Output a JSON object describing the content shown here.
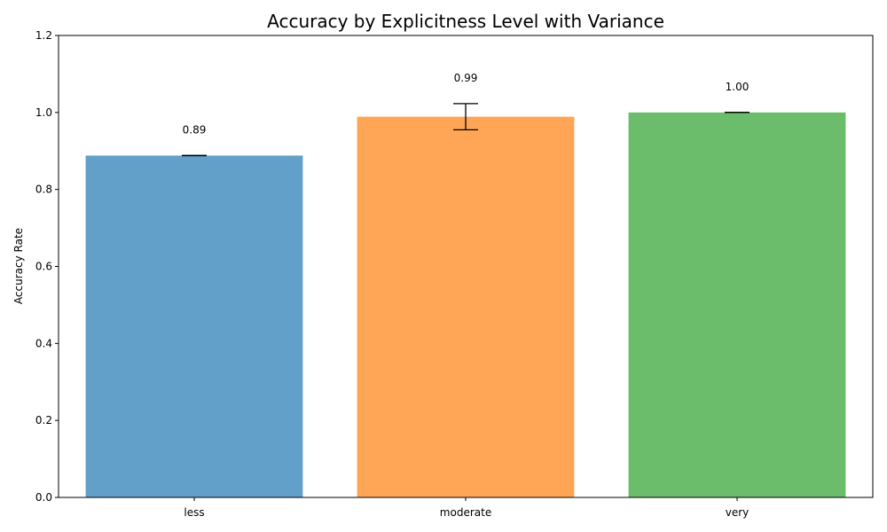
{
  "chart_data": {
    "type": "bar",
    "title": "Accuracy by Explicitness Level with Variance",
    "xlabel": "",
    "ylabel": "Accuracy Rate",
    "categories": [
      "less",
      "moderate",
      "very"
    ],
    "values": [
      0.888,
      0.989,
      1.0
    ],
    "errors": [
      0.0,
      0.034,
      0.0
    ],
    "data_labels": [
      "0.89",
      "0.99",
      "1.00"
    ],
    "colors": [
      "#1f77b4",
      "#ff7f0e",
      "#2ca02c"
    ],
    "ylim": [
      0,
      1.2
    ],
    "yticks": [
      0.0,
      0.2,
      0.4,
      0.6,
      0.8,
      1.0,
      1.2
    ],
    "ytick_labels": [
      "0.0",
      "0.2",
      "0.4",
      "0.6",
      "0.8",
      "1.0",
      "1.2"
    ],
    "grid": false,
    "legend": "none"
  }
}
